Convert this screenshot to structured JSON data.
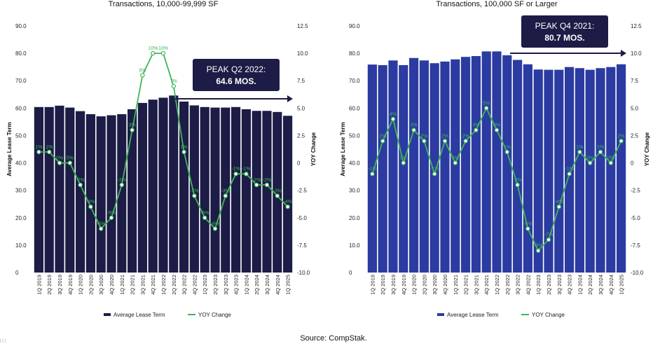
{
  "source": "Source: CompStak.",
  "corner_text": "| | |",
  "chart_data": [
    {
      "type": "bar",
      "title": "Transactions, 10,000-99,999 SF",
      "ylabel": "Average Lease Term",
      "y2label": "YOY Change",
      "ylim": [
        0,
        90
      ],
      "y2lim": [
        -10,
        12.5
      ],
      "yticks": [
        "0",
        "10.0",
        "20.0",
        "30.0",
        "40.0",
        "50.0",
        "60.0",
        "70.0",
        "80.0",
        "90.0"
      ],
      "y2ticks": [
        "-10.0",
        "-7.5",
        "-5.0",
        "-2.5",
        "0",
        "2.5",
        "5.0",
        "7.5",
        "10.0",
        "12.5"
      ],
      "categories": [
        "1Q 2019",
        "2Q 2019",
        "3Q 2019",
        "4Q 2019",
        "1Q 2020",
        "2Q 2020",
        "3Q 2020",
        "4Q 2020",
        "1Q 2021",
        "2Q 2021",
        "3Q 2021",
        "4Q 2021",
        "1Q 2022",
        "2Q 2022",
        "3Q 2022",
        "4Q 2022",
        "1Q 2023",
        "2Q 2023",
        "3Q 2023",
        "4Q 2023",
        "1Q 2024",
        "2Q 2024",
        "3Q 2024",
        "4Q 2024",
        "1Q 2025"
      ],
      "bar_color": "#1c1c46",
      "line_color": "#3fb55a",
      "series": [
        {
          "name": "Average Lease Term",
          "values": [
            60.4,
            60.4,
            60.9,
            60.2,
            58.9,
            57.8,
            57.0,
            57.4,
            57.8,
            59.6,
            61.9,
            63.1,
            63.8,
            64.6,
            62.4,
            61.0,
            60.4,
            60.2,
            60.2,
            60.4,
            59.6,
            59.0,
            59.0,
            58.6,
            57.2
          ]
        },
        {
          "name": "YOY Change",
          "values": [
            1.0,
            1.0,
            0.0,
            0.0,
            -2.0,
            -4.0,
            -6.0,
            -5.0,
            -2.0,
            3.0,
            8.0,
            10.0,
            10.0,
            7.0,
            1.0,
            -3.0,
            -5.0,
            -6.0,
            -3.0,
            -1.0,
            -1.0,
            -2.0,
            -2.0,
            -3.0,
            -4.0
          ]
        }
      ],
      "labels": [
        "1%",
        "1%",
        "0%",
        "0%",
        "-2%",
        "-4%",
        "-6%",
        "-5%",
        "-2%",
        "3%",
        "8%",
        "10%",
        "10%",
        "7%",
        "1%",
        "-3%",
        "-5%",
        "-6%",
        "-3%",
        "-1%",
        "-1%",
        "-2%",
        "-2%",
        "-3%",
        "-4%"
      ],
      "callout": {
        "line1": "PEAK Q2 2022:",
        "line2": "64.6 MOS."
      },
      "legend": [
        "Average Lease Term",
        "YOY Change"
      ]
    },
    {
      "type": "bar",
      "title": "Transactions, 100,000 SF or Larger",
      "ylabel": "Average Lease Term",
      "y2label": "YOY Change",
      "ylim": [
        0,
        90
      ],
      "y2lim": [
        -10,
        12.5
      ],
      "yticks": [
        "0",
        "10.0",
        "20.0",
        "30.0",
        "40.0",
        "50.0",
        "60.0",
        "70.0",
        "80.0",
        "90.0"
      ],
      "y2ticks": [
        "-10.0",
        "-7.5",
        "-5.0",
        "-2.5",
        "0",
        "2.5",
        "5.0",
        "7.5",
        "10.0",
        "12.5"
      ],
      "categories": [
        "1Q 2019",
        "2Q 2019",
        "3Q 2019",
        "4Q 2019",
        "1Q 2020",
        "2Q 2020",
        "3Q 2020",
        "4Q 2020",
        "1Q 2021",
        "2Q 2021",
        "3Q 2021",
        "4Q 2021",
        "1Q 2022",
        "2Q 2022",
        "3Q 2022",
        "4Q 2022",
        "1Q 2023",
        "2Q 2023",
        "3Q 2023",
        "4Q 2023",
        "1Q 2024",
        "2Q 2024",
        "3Q 2024",
        "4Q 2024",
        "1Q 2025"
      ],
      "bar_color": "#2b3ba1",
      "line_color": "#3fb55a",
      "series": [
        {
          "name": "Average Lease Term",
          "values": [
            75.9,
            75.7,
            77.4,
            75.7,
            78.3,
            77.4,
            76.4,
            77.0,
            77.8,
            78.7,
            79.0,
            80.7,
            80.7,
            79.3,
            77.6,
            76.0,
            74.1,
            74.0,
            74.0,
            75.0,
            74.6,
            74.0,
            74.6,
            75.0,
            76.0
          ]
        },
        {
          "name": "YOY Change",
          "values": [
            -1.0,
            2.0,
            4.0,
            0.0,
            3.0,
            2.0,
            -1.0,
            2.0,
            0.0,
            2.0,
            3.0,
            5.0,
            3.0,
            1.0,
            -2.0,
            -6.0,
            -8.0,
            -7.0,
            -4.0,
            -1.0,
            1.0,
            0.0,
            1.0,
            0.0,
            2.0
          ]
        }
      ],
      "labels": [
        "-1%",
        "2%",
        "4%",
        "0%",
        "3%",
        "2%",
        "-1%",
        "2%",
        "0%",
        "2%",
        "3%",
        "5%",
        "3%",
        "1%",
        "-2%",
        "-6%",
        "-8%",
        "-7%",
        "-4%",
        "-1%",
        "1%",
        "0%",
        "1%",
        "0%",
        "2%"
      ],
      "callout": {
        "line1": "PEAK Q4 2021:",
        "line2": "80.7 MOS."
      },
      "legend": [
        "Average Lease Term",
        "YOY Change"
      ]
    }
  ]
}
